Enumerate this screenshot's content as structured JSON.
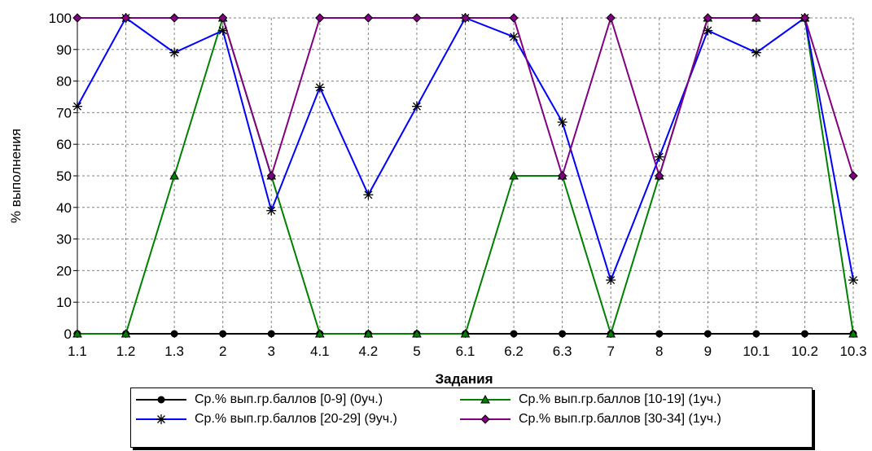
{
  "chart_data": {
    "type": "line",
    "xlabel": "Задания",
    "ylabel": "% выполнения",
    "ylim": [
      0,
      100
    ],
    "yticks": [
      0,
      10,
      20,
      30,
      40,
      50,
      60,
      70,
      80,
      90,
      100
    ],
    "categories": [
      "1.1",
      "1.2",
      "1.3",
      "2",
      "3",
      "4.1",
      "4.2",
      "5",
      "6.1",
      "6.2",
      "6.3",
      "7",
      "8",
      "9",
      "10.1",
      "10.2",
      "10.3"
    ],
    "grid": true,
    "legend_position": "bottom",
    "series": [
      {
        "name": "Ср.% вып.гр.баллов [0-9] (0уч.)",
        "color": "#000000",
        "marker": "circle",
        "values": [
          0,
          0,
          0,
          0,
          0,
          0,
          0,
          0,
          0,
          0,
          0,
          0,
          0,
          0,
          0,
          0,
          0
        ]
      },
      {
        "name": "Ср.% вып.гр.баллов [10-19] (1уч.)",
        "color": "#008000",
        "marker": "triangle",
        "values": [
          0,
          0,
          50,
          100,
          50,
          0,
          0,
          0,
          0,
          50,
          50,
          0,
          50,
          100,
          100,
          100,
          0
        ]
      },
      {
        "name": "Ср.% вып.гр.баллов [20-29] (9уч.)",
        "color": "#0000ff",
        "marker": "asterisk",
        "values": [
          72,
          100,
          89,
          96,
          39,
          78,
          44,
          72,
          100,
          94,
          67,
          17,
          56,
          96,
          89,
          100,
          17
        ]
      },
      {
        "name": "Ср.% вып.гр.баллов [30-34] (1уч.)",
        "color": "#800080",
        "marker": "diamond",
        "values": [
          100,
          100,
          100,
          100,
          50,
          100,
          100,
          100,
          100,
          100,
          50,
          100,
          50,
          100,
          100,
          100,
          50
        ]
      }
    ]
  }
}
